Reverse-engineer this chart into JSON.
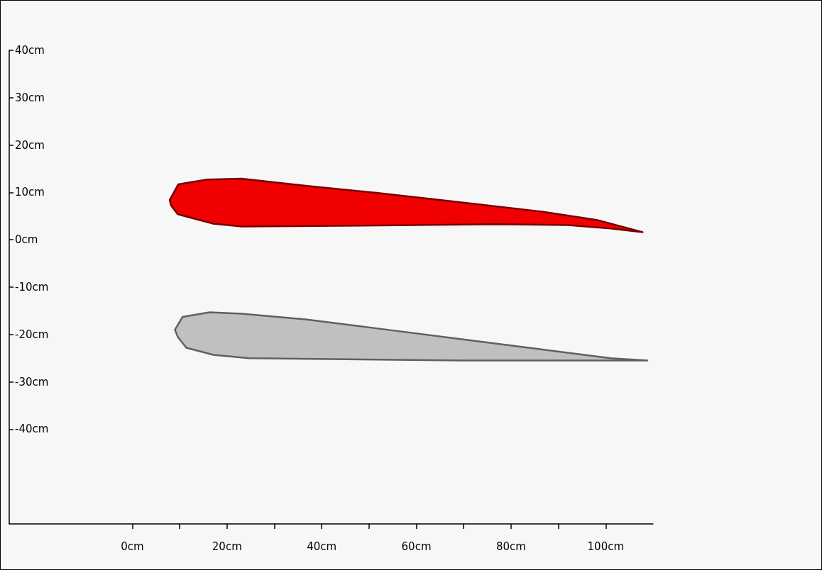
{
  "chart_data": {
    "type": "area",
    "series": [
      {
        "color": "#f00000",
        "x": [
          7.9,
          9.7,
          15.6,
          23.1,
          36.6,
          51.6,
          69.6,
          86.1,
          98.1,
          107.8,
          101,
          92,
          77.1,
          48.6,
          23.1,
          17.1,
          9.6,
          8.2
        ],
        "values": [
          8.4,
          11.7,
          12.7,
          12.9,
          11.4,
          9.9,
          7.9,
          6.0,
          4.2,
          1.6,
          2.4,
          3.1,
          3.3,
          3.0,
          2.8,
          3.4,
          5.4,
          7.2
        ]
      },
      {
        "color": "#c0c0c0",
        "x": [
          9.0,
          10.6,
          16.3,
          23.1,
          36.6,
          51.6,
          69.6,
          86.1,
          101,
          108.8,
          69.6,
          24.6,
          17.1,
          11.4,
          9.6
        ],
        "values": [
          -19.0,
          -16.3,
          -15.3,
          -15.6,
          -16.8,
          -18.7,
          -21.0,
          -23.1,
          -25.0,
          -25.5,
          -25.5,
          -25.0,
          -24.3,
          -22.8,
          -20.5
        ]
      }
    ],
    "xlim": [
      -26,
      110
    ],
    "xticks": [
      {
        "value": 0,
        "label": "0cm"
      },
      {
        "value": 10,
        "label": null
      },
      {
        "value": 20,
        "label": "20cm"
      },
      {
        "value": 30,
        "label": null
      },
      {
        "value": 40,
        "label": "40cm"
      },
      {
        "value": 50,
        "label": null
      },
      {
        "value": 60,
        "label": "60cm"
      },
      {
        "value": 70,
        "label": null
      },
      {
        "value": 80,
        "label": "80cm"
      },
      {
        "value": 90,
        "label": null
      },
      {
        "value": 100,
        "label": "100cm"
      }
    ],
    "ylim": [
      -60,
      40
    ],
    "yticks": [
      {
        "value": -40,
        "label": "-40cm"
      },
      {
        "value": -30,
        "label": "-30cm"
      },
      {
        "value": -20,
        "label": "-20cm"
      },
      {
        "value": -10,
        "label": "-10cm"
      },
      {
        "value": 0,
        "label": "0cm"
      },
      {
        "value": 10,
        "label": "10cm"
      },
      {
        "value": 20,
        "label": "20cm"
      },
      {
        "value": 30,
        "label": "30cm"
      },
      {
        "value": 40,
        "label": "40cm"
      }
    ],
    "grid": false
  }
}
